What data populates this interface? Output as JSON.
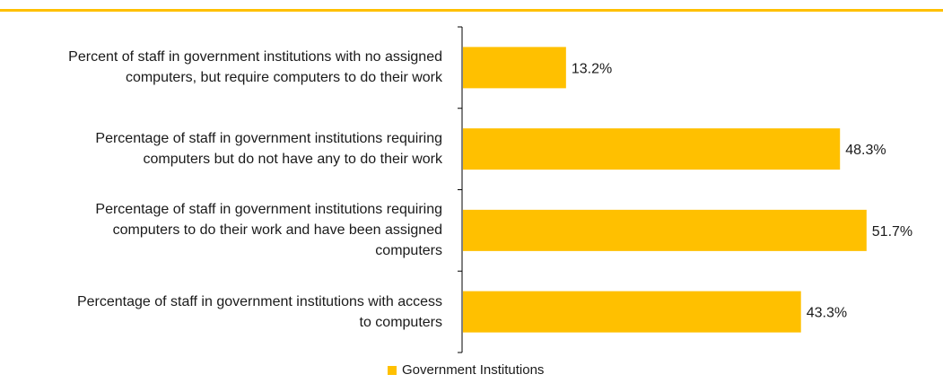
{
  "chart_data": {
    "type": "bar",
    "orientation": "horizontal",
    "categories": [
      [
        "Percent of staff in government institutions with no assigned",
        "computers, but require computers to do their work"
      ],
      [
        "Percentage of staff in government institutions requiring",
        "computers but do not have any to do their work"
      ],
      [
        "Percentage of staff in government institutions requiring",
        "computers to do their work and have been assigned",
        "computers"
      ],
      [
        "Percentage of staff in government institutions with access",
        "to computers"
      ]
    ],
    "values": [
      13.2,
      48.3,
      51.7,
      43.3
    ],
    "value_labels": [
      "13.2%",
      "48.3%",
      "51.7%",
      "43.3%"
    ],
    "series": [
      {
        "name": "Government Institutions",
        "values": [
          13.2,
          48.3,
          51.7,
          43.3
        ]
      }
    ],
    "xlim": [
      0,
      60
    ],
    "grid": false,
    "legend_position": "bottom",
    "colors": {
      "bar": "#FFC000",
      "top_rule": "#FFC000",
      "axis": "#000000"
    }
  }
}
